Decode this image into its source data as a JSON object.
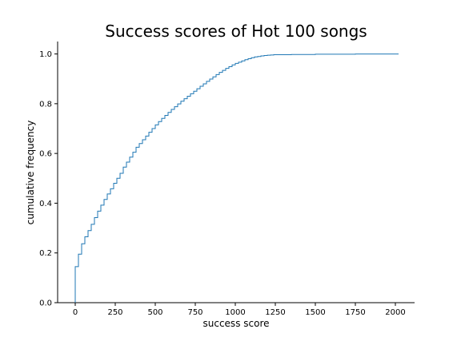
{
  "chart_data": {
    "type": "line",
    "drawstyle": "steps-post",
    "title": "Success scores of Hot 100 songs",
    "xlabel": "success score",
    "ylabel": "cumulative frequency",
    "xlim": [
      -110,
      2120
    ],
    "ylim": [
      0,
      1.05
    ],
    "xticks": [
      0,
      250,
      500,
      750,
      1000,
      1250,
      1500,
      1750,
      2000
    ],
    "xtick_labels": [
      "0",
      "250",
      "500",
      "750",
      "1000",
      "1250",
      "1500",
      "1750",
      "2000"
    ],
    "yticks": [
      0.0,
      0.2,
      0.4,
      0.6,
      0.8,
      1.0
    ],
    "ytick_labels": [
      "0.0",
      "0.2",
      "0.4",
      "0.6",
      "0.8",
      "1.0"
    ],
    "grid": false,
    "spines": [
      "left",
      "bottom"
    ],
    "color": "#1f77b4",
    "series": [
      {
        "x": [
          0,
          0,
          20,
          40,
          60,
          80,
          100,
          120,
          140,
          160,
          180,
          200,
          220,
          240,
          260,
          280,
          300,
          320,
          340,
          360,
          380,
          400,
          420,
          440,
          460,
          480,
          500,
          520,
          540,
          560,
          580,
          600,
          620,
          640,
          660,
          680,
          700,
          720,
          740,
          760,
          780,
          800,
          820,
          840,
          860,
          880,
          900,
          920,
          940,
          960,
          980,
          1000,
          1020,
          1040,
          1060,
          1080,
          1100,
          1120,
          1140,
          1160,
          1180,
          1200,
          1220,
          1240,
          1260,
          1300,
          1350,
          1400,
          1500,
          1600,
          1750,
          2020
        ],
        "y": [
          0.0,
          0.145,
          0.195,
          0.237,
          0.265,
          0.29,
          0.315,
          0.342,
          0.368,
          0.392,
          0.415,
          0.437,
          0.458,
          0.48,
          0.5,
          0.52,
          0.545,
          0.565,
          0.585,
          0.605,
          0.625,
          0.64,
          0.655,
          0.67,
          0.685,
          0.7,
          0.715,
          0.728,
          0.741,
          0.753,
          0.765,
          0.777,
          0.788,
          0.799,
          0.81,
          0.82,
          0.83,
          0.84,
          0.85,
          0.86,
          0.87,
          0.88,
          0.89,
          0.899,
          0.908,
          0.917,
          0.926,
          0.934,
          0.942,
          0.949,
          0.956,
          0.962,
          0.967,
          0.972,
          0.977,
          0.981,
          0.985,
          0.988,
          0.99,
          0.992,
          0.994,
          0.995,
          0.996,
          0.997,
          0.997,
          0.997,
          0.998,
          0.998,
          0.999,
          0.999,
          1.0,
          1.0
        ]
      }
    ]
  }
}
